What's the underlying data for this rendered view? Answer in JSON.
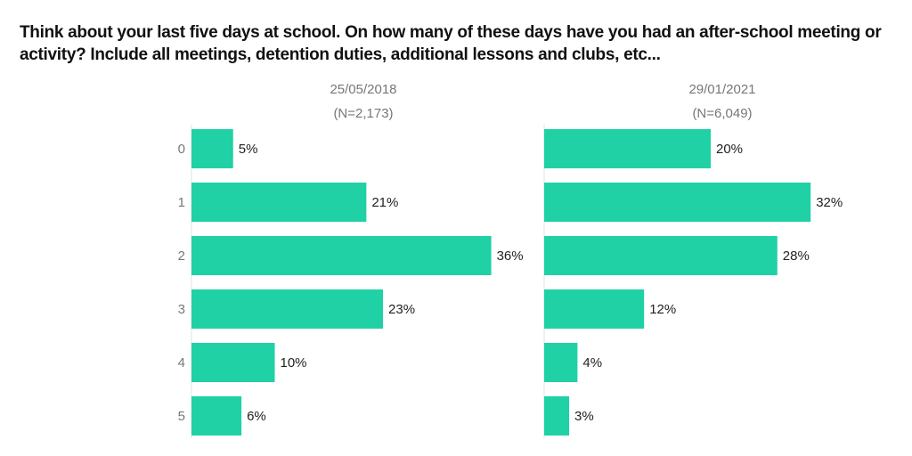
{
  "chart_data": {
    "type": "bar",
    "orientation": "horizontal",
    "title": "Think about your last five days at school. On how many of these days have you had an after-school meeting or activity? Include all meetings, detention duties, additional lessons and clubs, etc...",
    "categories": [
      "0",
      "1",
      "2",
      "3",
      "4",
      "5"
    ],
    "xlim": [
      0,
      36
    ],
    "grid": false,
    "bar_color": "#1fd1a5",
    "panels": [
      {
        "date": "25/05/2018",
        "n": "(N=2,173)",
        "values": [
          5,
          21,
          36,
          23,
          10,
          6
        ]
      },
      {
        "date": "29/01/2021",
        "n": "(N=6,049)",
        "values": [
          20,
          32,
          28,
          12,
          4,
          3
        ]
      }
    ]
  }
}
